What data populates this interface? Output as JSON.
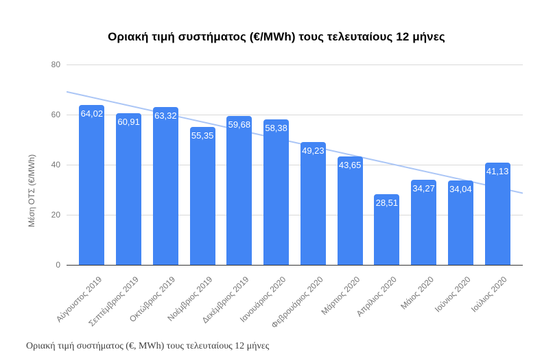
{
  "figure": {
    "caption": "Οριακή τιμή συστήματος (€, MWh) τους τελευταίους 12 μήνες"
  },
  "chart_data": {
    "type": "bar",
    "title": "Οριακή τιμή συστήματος (€/MWh) τους τελευταίους 12 μήνες",
    "xlabel": "",
    "ylabel": "Μέση ΟΤΣ (€/MWh)",
    "categories": [
      "Αύγουστος 2019",
      "Σεπτέμβριος 2019",
      "Οκτώβριος 2019",
      "Νοέμβριος 2019",
      "Δεκέμβριος 2019",
      "Ιανουάριος 2020",
      "Φεβρουάριος 2020",
      "Μάρτιος 2020",
      "Απρίλιος 2020",
      "Μάιος 2020",
      "Ιούνιος 2020",
      "Ιούλιος 2020"
    ],
    "values": [
      64.02,
      60.91,
      63.32,
      55.35,
      59.68,
      58.38,
      49.23,
      43.65,
      28.51,
      34.27,
      34.04,
      41.13
    ],
    "value_labels": [
      "64,02",
      "60,91",
      "63,32",
      "55,35",
      "59,68",
      "58,38",
      "49,23",
      "43,65",
      "28,51",
      "34,27",
      "34,04",
      "41,13"
    ],
    "ylim": [
      0,
      80
    ],
    "yticks": [
      0,
      20,
      40,
      60,
      80
    ],
    "grid": true,
    "legend": "none",
    "bar_color": "#4285f4",
    "bar_label_color": "#ffffff",
    "axis_text_color": "#757575",
    "trendline": {
      "type": "linear",
      "start_value": 69.4,
      "end_value": 28.9,
      "color": "#abc6f6"
    }
  }
}
